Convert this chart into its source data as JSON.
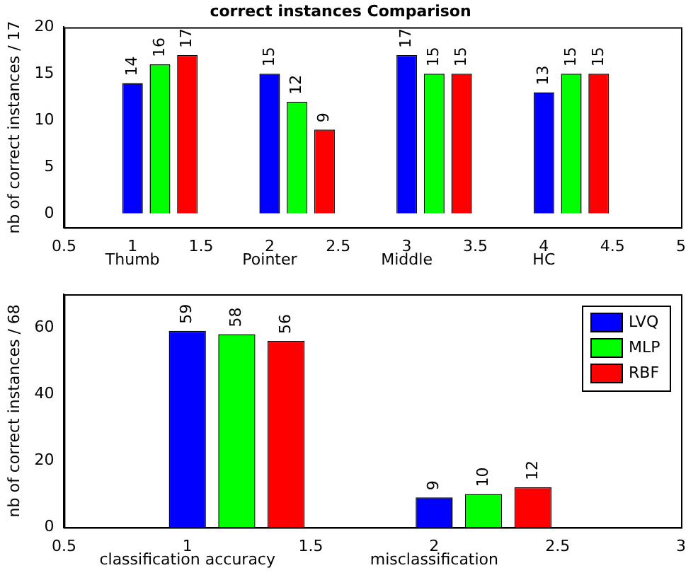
{
  "chart_data": [
    {
      "type": "bar",
      "title": "correct instances Comparison",
      "ylabel": "nb of correct instances / 17",
      "xlim": [
        0.5,
        5
      ],
      "xticks": [
        0.5,
        1,
        1.5,
        2,
        2.5,
        3,
        3.5,
        4,
        4.5,
        5
      ],
      "ylim": [
        -1.5,
        20
      ],
      "yticks": [
        0,
        5,
        10,
        15,
        20
      ],
      "data_labels": true,
      "annotations": [
        "Thumb",
        "Pointer",
        "Middle",
        "HC"
      ],
      "series": [
        {
          "color": "#0000ff",
          "x": [
            1,
            2,
            3,
            4
          ],
          "values": [
            14,
            15,
            17,
            13
          ]
        },
        {
          "color": "#00ff00",
          "x": [
            1.2,
            2.2,
            3.2,
            4.2
          ],
          "values": [
            16,
            12,
            15,
            15
          ]
        },
        {
          "color": "#ff0000",
          "x": [
            1.4,
            2.4,
            3.4,
            4.4
          ],
          "values": [
            17,
            9,
            15,
            15
          ]
        }
      ]
    },
    {
      "type": "bar",
      "ylabel": "nb of correct instances / 68",
      "xlim": [
        0.5,
        3
      ],
      "xticks": [
        0.5,
        1,
        1.5,
        2,
        2.5,
        3
      ],
      "ylim": [
        0,
        70
      ],
      "yticks": [
        0,
        20,
        40,
        60
      ],
      "data_labels": true,
      "legend": "top right",
      "annotations": [
        "classification accuracy",
        "misclassification"
      ],
      "series": [
        {
          "name": "LVQ",
          "color": "#0000ff",
          "x": [
            1,
            2
          ],
          "values": [
            59,
            9
          ]
        },
        {
          "name": "MLP",
          "color": "#00ff00",
          "x": [
            1.2,
            2.2
          ],
          "values": [
            58,
            10
          ]
        },
        {
          "name": "RBF",
          "color": "#ff0000",
          "x": [
            1.4,
            2.4
          ],
          "values": [
            56,
            12
          ]
        }
      ]
    }
  ]
}
